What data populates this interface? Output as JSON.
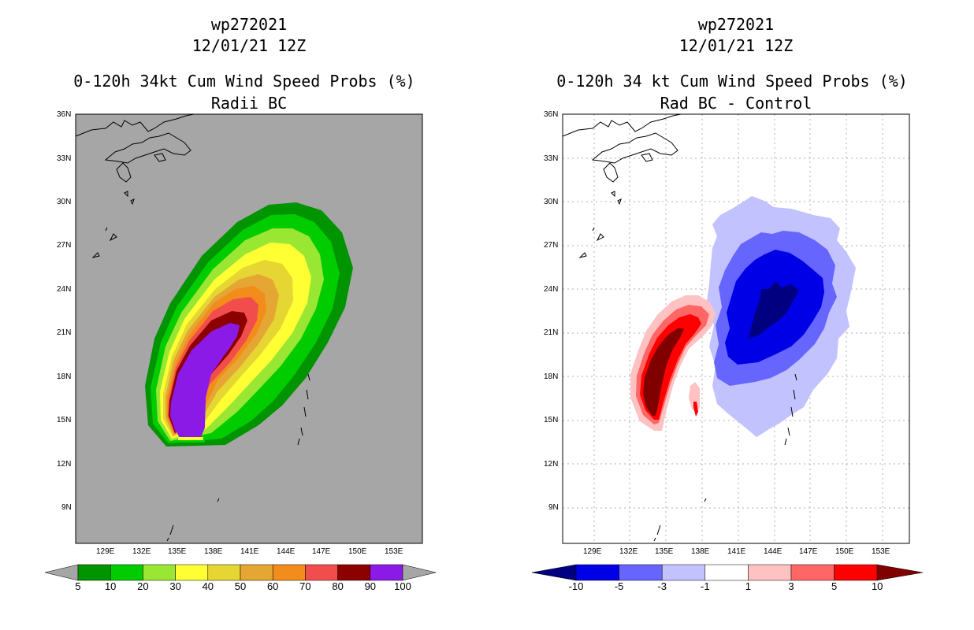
{
  "left": {
    "title_line1": "wp272021",
    "title_line2": "12/01/21 12Z",
    "title_line3": "0-120h 34kt Cum Wind Speed Probs (%)",
    "title_line4": "Radii BC",
    "lat_ticks": [
      "36N",
      "33N",
      "30N",
      "27N",
      "24N",
      "21N",
      "18N",
      "15N",
      "12N",
      "9N"
    ],
    "lon_ticks": [
      "129E",
      "132E",
      "135E",
      "138E",
      "141E",
      "144E",
      "147E",
      "150E",
      "153E"
    ],
    "colorbar": {
      "labels": [
        "5",
        "10",
        "20",
        "30",
        "40",
        "50",
        "60",
        "70",
        "80",
        "90",
        "100"
      ],
      "colors": [
        "#009400",
        "#00cc00",
        "#99e633",
        "#ffff33",
        "#e6d633",
        "#e6a633",
        "#f28c1a",
        "#f24d4d",
        "#8c0000",
        "#8c1ae6"
      ],
      "end_color": "#a6a6a6"
    },
    "map_background": "#a6a6a6"
  },
  "right": {
    "title_line1": "wp272021",
    "title_line2": "12/01/21 12Z",
    "title_line3": "0-120h 34 kt Cum Wind Speed Probs (%)",
    "title_line4": "Rad BC - Control",
    "lat_ticks": [
      "36N",
      "33N",
      "30N",
      "27N",
      "24N",
      "21N",
      "18N",
      "15N",
      "12N",
      "9N"
    ],
    "lon_ticks": [
      "129E",
      "132E",
      "135E",
      "138E",
      "141E",
      "144E",
      "147E",
      "150E",
      "153E"
    ],
    "colorbar": {
      "labels": [
        "-10",
        "-5",
        "-3",
        "-1",
        "1",
        "3",
        "5",
        "10"
      ],
      "colors": [
        "#0000e6",
        "#6666ff",
        "#c2c2ff",
        "#ffffff",
        "#ffc2c2",
        "#ff6666",
        "#ff0000"
      ],
      "low_color": "#000080",
      "high_color": "#800000"
    },
    "map_background": "#ffffff"
  }
}
